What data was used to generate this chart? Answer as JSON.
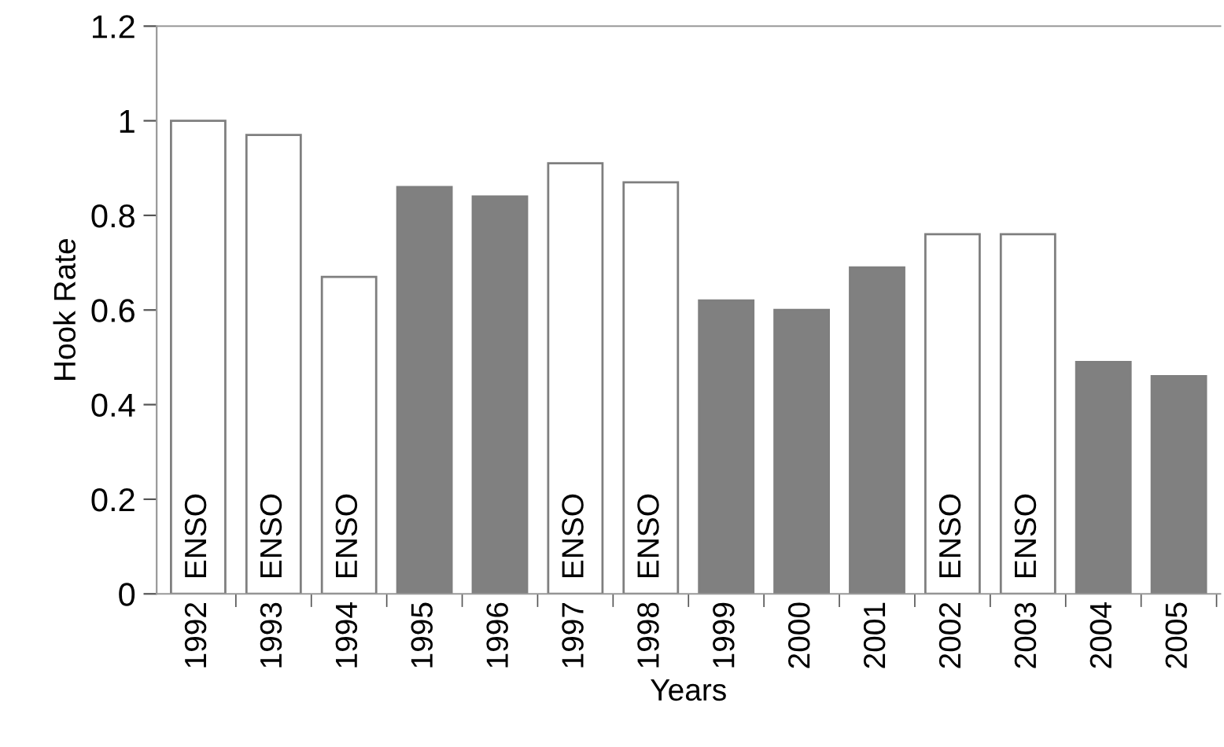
{
  "chart_data": {
    "type": "bar",
    "xlabel": "Years",
    "ylabel": "Hook Rate",
    "categories": [
      "1992",
      "1993",
      "1994",
      "1995",
      "1996",
      "1997",
      "1998",
      "1999",
      "2000",
      "2001",
      "2002",
      "2003",
      "2004",
      "2005"
    ],
    "values": [
      1.0,
      0.97,
      0.67,
      0.86,
      0.84,
      0.91,
      0.87,
      0.62,
      0.6,
      0.69,
      0.76,
      0.76,
      0.49,
      0.46
    ],
    "colors": [
      "#ffffff",
      "#ffffff",
      "#ffffff",
      "#808080",
      "#808080",
      "#ffffff",
      "#ffffff",
      "#808080",
      "#808080",
      "#808080",
      "#ffffff",
      "#ffffff",
      "#808080",
      "#808080"
    ],
    "ylim": [
      0,
      1.2
    ],
    "yticks": [
      {
        "value": 0,
        "label": "0"
      },
      0.2,
      0.4,
      0.6,
      0.8,
      {
        "value": 1,
        "label": "1"
      },
      1.2
    ],
    "annotations": [
      {
        "text": "ENSO",
        "x": "1992",
        "y": 0
      },
      {
        "text": "ENSO",
        "x": "1993",
        "y": 0
      },
      {
        "text": "ENSO",
        "x": "1994",
        "y": 0
      },
      {
        "text": "ENSO",
        "x": "1997",
        "y": 0
      },
      {
        "text": "ENSO",
        "x": "1998",
        "y": 0
      },
      {
        "text": "ENSO",
        "x": "2002",
        "y": 0
      },
      {
        "text": "ENSO",
        "x": "2003",
        "y": 0
      }
    ],
    "grid": false,
    "legend": false
  }
}
